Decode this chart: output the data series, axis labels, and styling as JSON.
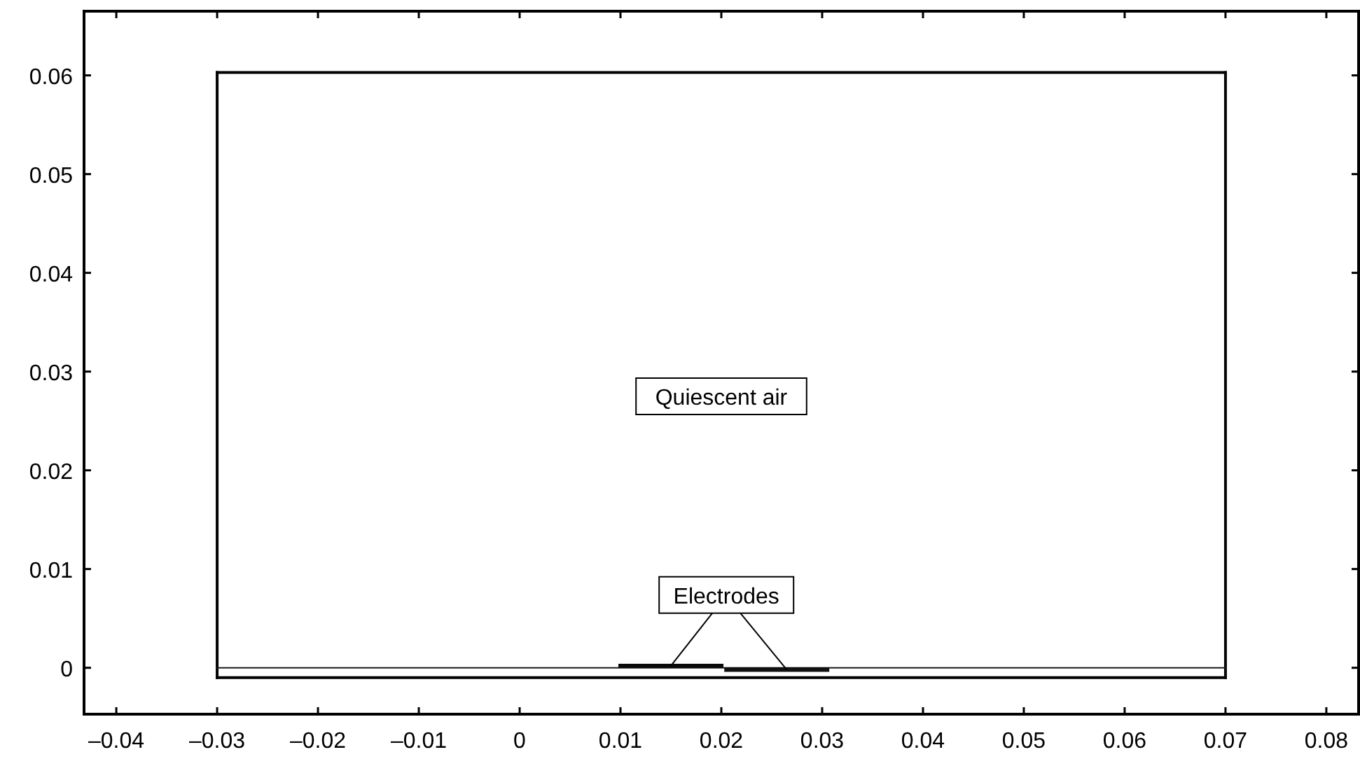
{
  "chart_data": {
    "type": "line",
    "xlim": [
      -0.0432,
      0.0832
    ],
    "ylim": [
      -0.0047,
      0.0665
    ],
    "xticks": [
      {
        "value": -0.04,
        "label": "–0.04"
      },
      {
        "value": -0.03,
        "label": "–0.03"
      },
      {
        "value": -0.02,
        "label": "–0.02"
      },
      {
        "value": -0.01,
        "label": "–0.01"
      },
      0,
      0.01,
      0.02,
      0.03,
      0.04,
      0.05,
      0.06,
      0.07,
      0.08
    ],
    "yticks": [
      0,
      0.01,
      0.02,
      0.03,
      0.04,
      0.05,
      0.06
    ],
    "grid": false,
    "marker": "none",
    "line_style": "solid",
    "series": [
      {
        "color": "#000000",
        "x": [
          -0.03,
          0.07
        ],
        "values": [
          -0.001,
          -0.001
        ]
      },
      {
        "color": "#020202",
        "x": [
          -0.03,
          0.07
        ],
        "values": [
          0.0603,
          0.0603
        ]
      },
      {
        "color": "#040404",
        "x": [
          -0.03,
          -0.03
        ],
        "values": [
          -0.001,
          0.0603
        ]
      },
      {
        "color": "#060606",
        "x": [
          0.07,
          0.07
        ],
        "values": [
          -0.001,
          0.0603
        ]
      },
      {
        "color": "#1a1a1a",
        "x": [
          -0.03,
          0.07
        ],
        "values": [
          0,
          0
        ]
      },
      {
        "color": "#0a0a0a",
        "x": [
          0.01,
          0.02
        ],
        "values": [
          0.0002,
          0.0002
        ]
      },
      {
        "color": "#111111",
        "x": [
          0.0205,
          0.0305
        ],
        "values": [
          -0.0002,
          -0.0002
        ]
      }
    ],
    "annotations": [
      "Quiescent air",
      {
        "text": "Electrodes",
        "x": 0.0205,
        "y": 0
      }
    ]
  }
}
